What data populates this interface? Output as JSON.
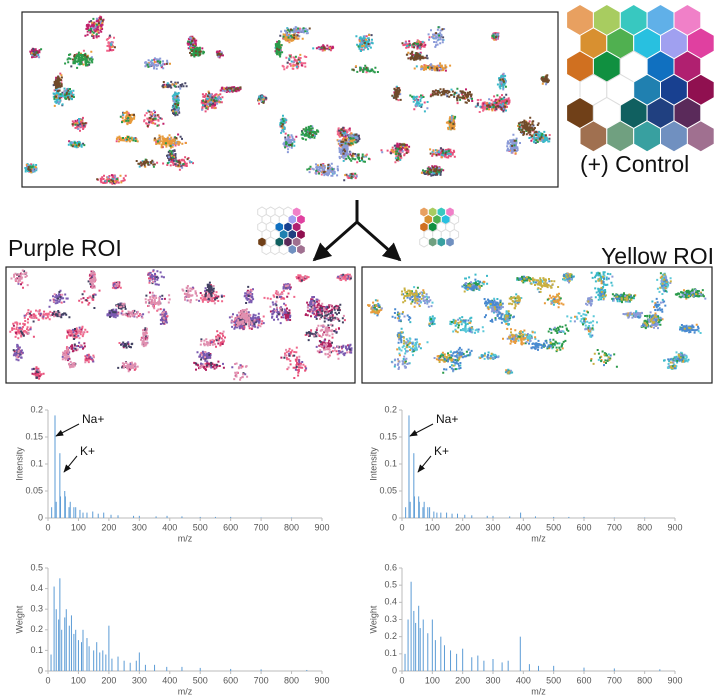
{
  "labels": {
    "control": "(+) Control",
    "purple": "Purple ROI",
    "yellow": "Yellow ROI"
  },
  "chart_data": [
    {
      "type": "bar",
      "xlabel": "m/z",
      "ylabel": "Intensity",
      "color": "#5b9bd5",
      "xlim": [
        0,
        900
      ],
      "xticks": [
        0,
        100,
        200,
        300,
        400,
        500,
        600,
        700,
        800,
        900
      ],
      "ylim": [
        0,
        0.2
      ],
      "yticks": [
        0,
        0.05,
        0.1,
        0.15,
        0.2
      ],
      "annotations": [
        "Na+",
        "K+"
      ],
      "x": [
        12,
        23,
        27,
        39,
        41,
        55,
        57,
        69,
        73,
        85,
        91,
        105,
        115,
        128,
        147,
        165,
        183,
        207,
        230,
        281,
        300,
        355,
        391,
        440,
        500,
        550,
        600,
        700,
        800
      ],
      "values": [
        0.02,
        0.19,
        0.03,
        0.12,
        0.04,
        0.05,
        0.04,
        0.02,
        0.03,
        0.02,
        0.02,
        0.015,
        0.01,
        0.01,
        0.012,
        0.008,
        0.01,
        0.006,
        0.005,
        0.004,
        0.004,
        0.003,
        0.004,
        0.003,
        0.002,
        0.002,
        0.002,
        0.001,
        0.001
      ]
    },
    {
      "type": "bar",
      "xlabel": "m/z",
      "ylabel": "Intensity",
      "color": "#5b9bd5",
      "xlim": [
        0,
        900
      ],
      "xticks": [
        0,
        100,
        200,
        300,
        400,
        500,
        600,
        700,
        800,
        900
      ],
      "ylim": [
        0,
        0.2
      ],
      "yticks": [
        0,
        0.05,
        0.1,
        0.15,
        0.2
      ],
      "annotations": [
        "Na+",
        "K+"
      ],
      "x": [
        12,
        23,
        27,
        39,
        41,
        55,
        57,
        69,
        73,
        85,
        91,
        105,
        115,
        128,
        147,
        165,
        183,
        207,
        230,
        281,
        300,
        355,
        391,
        440,
        500,
        550,
        600,
        700,
        800
      ],
      "values": [
        0.02,
        0.19,
        0.03,
        0.12,
        0.04,
        0.04,
        0.03,
        0.02,
        0.03,
        0.02,
        0.02,
        0.012,
        0.01,
        0.01,
        0.01,
        0.008,
        0.008,
        0.006,
        0.005,
        0.004,
        0.004,
        0.003,
        0.01,
        0.003,
        0.002,
        0.002,
        0.002,
        0.001,
        0.001
      ]
    },
    {
      "type": "bar",
      "xlabel": "m/z",
      "ylabel": "Weight",
      "color": "#5b9bd5",
      "xlim": [
        0,
        900
      ],
      "xticks": [
        0,
        100,
        200,
        300,
        400,
        500,
        600,
        700,
        800,
        900
      ],
      "ylim": [
        0,
        0.5
      ],
      "yticks": [
        0,
        0.1,
        0.2,
        0.3,
        0.4,
        0.5
      ],
      "x": [
        10,
        20,
        27,
        35,
        39,
        45,
        55,
        60,
        70,
        77,
        85,
        91,
        100,
        110,
        115,
        128,
        135,
        150,
        160,
        170,
        180,
        190,
        200,
        210,
        230,
        250,
        270,
        290,
        300,
        320,
        350,
        390,
        440,
        500,
        600,
        700,
        850
      ],
      "values": [
        0.08,
        0.41,
        0.3,
        0.25,
        0.45,
        0.2,
        0.26,
        0.3,
        0.22,
        0.27,
        0.18,
        0.2,
        0.15,
        0.14,
        0.2,
        0.16,
        0.12,
        0.1,
        0.14,
        0.09,
        0.1,
        0.08,
        0.22,
        0.06,
        0.07,
        0.05,
        0.04,
        0.05,
        0.09,
        0.03,
        0.03,
        0.02,
        0.02,
        0.015,
        0.01,
        0.008,
        0.005
      ]
    },
    {
      "type": "bar",
      "xlabel": "m/z",
      "ylabel": "Weight",
      "color": "#5b9bd5",
      "xlim": [
        0,
        900
      ],
      "xticks": [
        0,
        100,
        200,
        300,
        400,
        500,
        600,
        700,
        800,
        900
      ],
      "ylim": [
        0,
        0.6
      ],
      "yticks": [
        0,
        0.1,
        0.2,
        0.3,
        0.4,
        0.5,
        0.6
      ],
      "x": [
        10,
        20,
        30,
        39,
        45,
        55,
        60,
        70,
        85,
        100,
        110,
        128,
        140,
        160,
        180,
        200,
        230,
        250,
        270,
        300,
        330,
        350,
        390,
        420,
        450,
        500,
        600,
        700,
        850
      ],
      "values": [
        0.1,
        0.3,
        0.52,
        0.35,
        0.28,
        0.38,
        0.25,
        0.3,
        0.22,
        0.3,
        0.18,
        0.2,
        0.15,
        0.12,
        0.1,
        0.13,
        0.08,
        0.09,
        0.06,
        0.07,
        0.05,
        0.06,
        0.2,
        0.04,
        0.03,
        0.03,
        0.02,
        0.015,
        0.01
      ]
    }
  ]
}
